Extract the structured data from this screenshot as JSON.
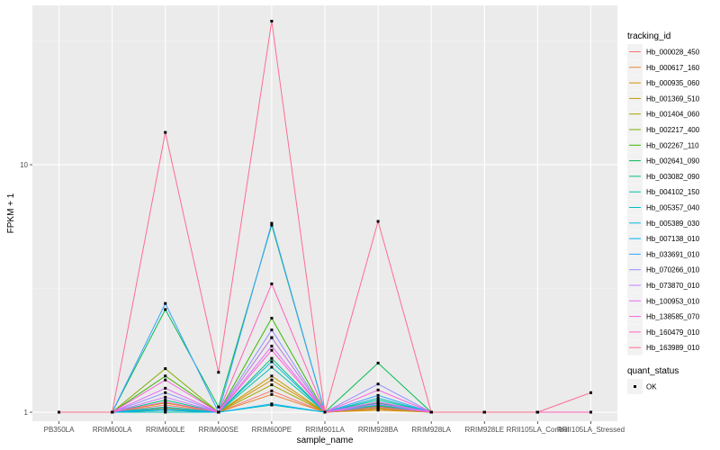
{
  "chart_data": {
    "type": "line",
    "xlabel": "sample_name",
    "ylabel": "FPKM + 1",
    "y_scale": "log10",
    "ylim": [
      0.92,
      44
    ],
    "y_ticks": [
      1,
      10
    ],
    "grid": true,
    "legend_position": "right",
    "categories": [
      "PB350LA",
      "RRIM600LA",
      "RRIM600LE",
      "RRIM600SE",
      "RRIM600PE",
      "RRIM901LA",
      "RRIM928BA",
      "RRIM928LA",
      "RRIM928LE",
      "RRII105LA_Control",
      "RRII105LA_Stressed"
    ],
    "legend_title": "tracking_id",
    "series": [
      {
        "name": "Hb_000028_450",
        "color": "#F8766D",
        "values": [
          1,
          1,
          1.07,
          1,
          1.22,
          1,
          1.05,
          1,
          1,
          1,
          1
        ]
      },
      {
        "name": "Hb_000617_160",
        "color": "#EA8331",
        "values": [
          1,
          1,
          1.04,
          1,
          1.18,
          1,
          1.03,
          1,
          1,
          1,
          1
        ]
      },
      {
        "name": "Hb_000935_060",
        "color": "#D89000",
        "values": [
          1,
          1,
          1.02,
          1,
          1.35,
          1,
          1.02,
          1,
          1,
          1,
          1
        ]
      },
      {
        "name": "Hb_001369_510",
        "color": "#C09B00",
        "values": [
          1,
          1,
          1.09,
          1,
          1.4,
          1,
          1.08,
          1,
          1,
          1,
          1
        ]
      },
      {
        "name": "Hb_001404_060",
        "color": "#A3A500",
        "values": [
          1,
          1,
          1.05,
          1,
          1.29,
          1,
          1.04,
          1,
          1,
          1,
          1
        ]
      },
      {
        "name": "Hb_002217_400",
        "color": "#7CAE00",
        "values": [
          1,
          1,
          1.5,
          1,
          2.0,
          1,
          1.1,
          1,
          1,
          1,
          1
        ]
      },
      {
        "name": "Hb_002267_110",
        "color": "#39B600",
        "values": [
          1,
          1,
          1.4,
          1,
          2.4,
          1,
          1.06,
          1,
          1,
          1,
          1
        ]
      },
      {
        "name": "Hb_002641_090",
        "color": "#00BB4E",
        "values": [
          1,
          1,
          2.6,
          1.05,
          5.7,
          1,
          1.58,
          1,
          1,
          1,
          1
        ]
      },
      {
        "name": "Hb_003082_090",
        "color": "#00BF7D",
        "values": [
          1,
          1,
          1.12,
          1,
          1.65,
          1,
          1.09,
          1,
          1,
          1,
          1
        ]
      },
      {
        "name": "Hb_004102_150",
        "color": "#00C1A3",
        "values": [
          1,
          1,
          1.0,
          1,
          1.52,
          1,
          1.12,
          1,
          1,
          1,
          1
        ]
      },
      {
        "name": "Hb_005357_040",
        "color": "#00BFC4",
        "values": [
          1,
          1,
          1.03,
          1,
          1.07,
          1,
          1.14,
          1,
          1,
          1,
          1
        ]
      },
      {
        "name": "Hb_005389_030",
        "color": "#00BAE0",
        "values": [
          1,
          1,
          1.05,
          1,
          1.6,
          1,
          1.07,
          1,
          1,
          1,
          1
        ]
      },
      {
        "name": "Hb_007138_010",
        "color": "#00B0F6",
        "values": [
          1,
          1,
          1.02,
          1,
          1.08,
          1,
          1.05,
          1,
          1,
          1,
          1
        ]
      },
      {
        "name": "Hb_033691_010",
        "color": "#35A2FF",
        "values": [
          1,
          1,
          2.75,
          1,
          5.8,
          1,
          1.17,
          1,
          1,
          1,
          1
        ]
      },
      {
        "name": "Hb_070266_010",
        "color": "#9590FF",
        "values": [
          1,
          1,
          1.2,
          1,
          2.15,
          1,
          1.3,
          1,
          1,
          1,
          1
        ]
      },
      {
        "name": "Hb_073870_010",
        "color": "#C77CFF",
        "values": [
          1,
          1,
          1.15,
          1,
          2.0,
          1,
          1.08,
          1,
          1,
          1,
          1
        ]
      },
      {
        "name": "Hb_100953_010",
        "color": "#E76BF3",
        "values": [
          1,
          1,
          1.25,
          1,
          1.85,
          1,
          1.1,
          1,
          1,
          1,
          1
        ]
      },
      {
        "name": "Hb_138585_070",
        "color": "#FA62DB",
        "values": [
          1,
          1,
          1.35,
          1,
          1.78,
          1,
          1.23,
          1,
          1,
          1,
          1
        ]
      },
      {
        "name": "Hb_160479_010",
        "color": "#FF62BC",
        "values": [
          1,
          1,
          1.1,
          1,
          3.3,
          1,
          1.05,
          1,
          1,
          1,
          1
        ]
      },
      {
        "name": "Hb_163989_010",
        "color": "#FF6C91",
        "values": [
          1,
          1,
          13.5,
          1.45,
          38,
          1,
          5.9,
          1,
          1,
          1,
          1.2
        ]
      }
    ],
    "point_legend_title": "quant_status",
    "point_legend_items": [
      "OK"
    ]
  }
}
